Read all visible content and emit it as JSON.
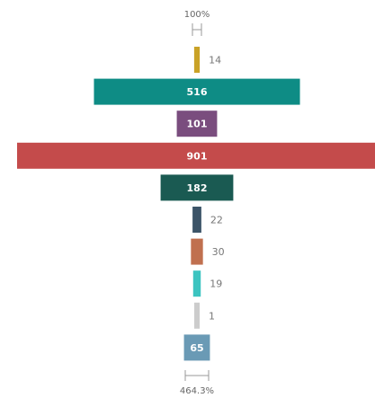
{
  "chart_data": {
    "type": "funnel",
    "values": [
      14,
      516,
      101,
      901,
      182,
      22,
      30,
      19,
      1,
      65
    ],
    "colors": [
      "#c9a227",
      "#0e8c85",
      "#7a4d7e",
      "#c44b4b",
      "#1a5a52",
      "#3c5468",
      "#c0704f",
      "#3cc4c0",
      "#cccccc",
      "#6a9ab5"
    ],
    "top_label": "100%",
    "bottom_label": "464.3%"
  }
}
